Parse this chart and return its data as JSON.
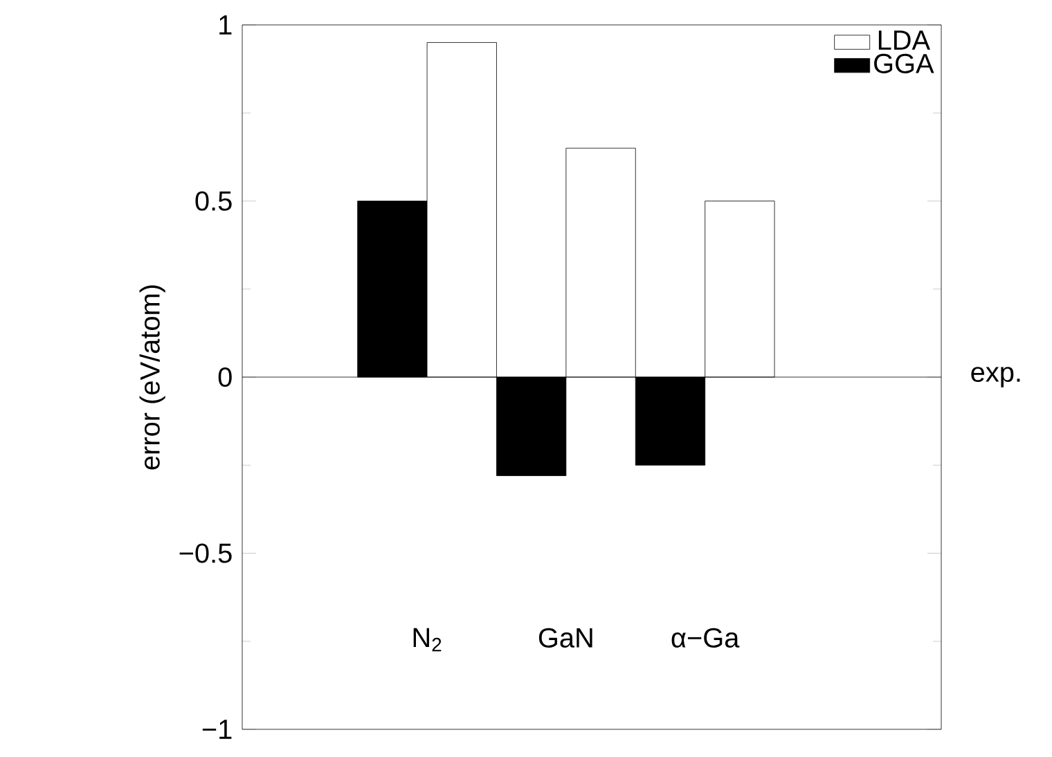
{
  "chart_data": {
    "type": "bar",
    "ylabel": "error (eV/atom)",
    "categories": [
      "N$_{2}$",
      "GaN",
      "α−Ga"
    ],
    "series": [
      {
        "name": "GGA",
        "color": "#000000",
        "values": [
          0.5,
          -0.28,
          -0.25
        ]
      },
      {
        "name": "LDA",
        "color": "#ffffff",
        "values": [
          0.95,
          0.65,
          0.5
        ]
      }
    ],
    "ylim": [
      -1,
      1
    ],
    "yticks": [
      {
        "value": -1,
        "label": "−1"
      },
      {
        "value": -0.5,
        "label": "−0.5"
      },
      0,
      0.5,
      1
    ],
    "ref_lines": [
      {
        "axis": "y",
        "value": 0,
        "label": "exp.",
        "color": "#000000"
      }
    ],
    "legend": "top right",
    "grid": false
  }
}
